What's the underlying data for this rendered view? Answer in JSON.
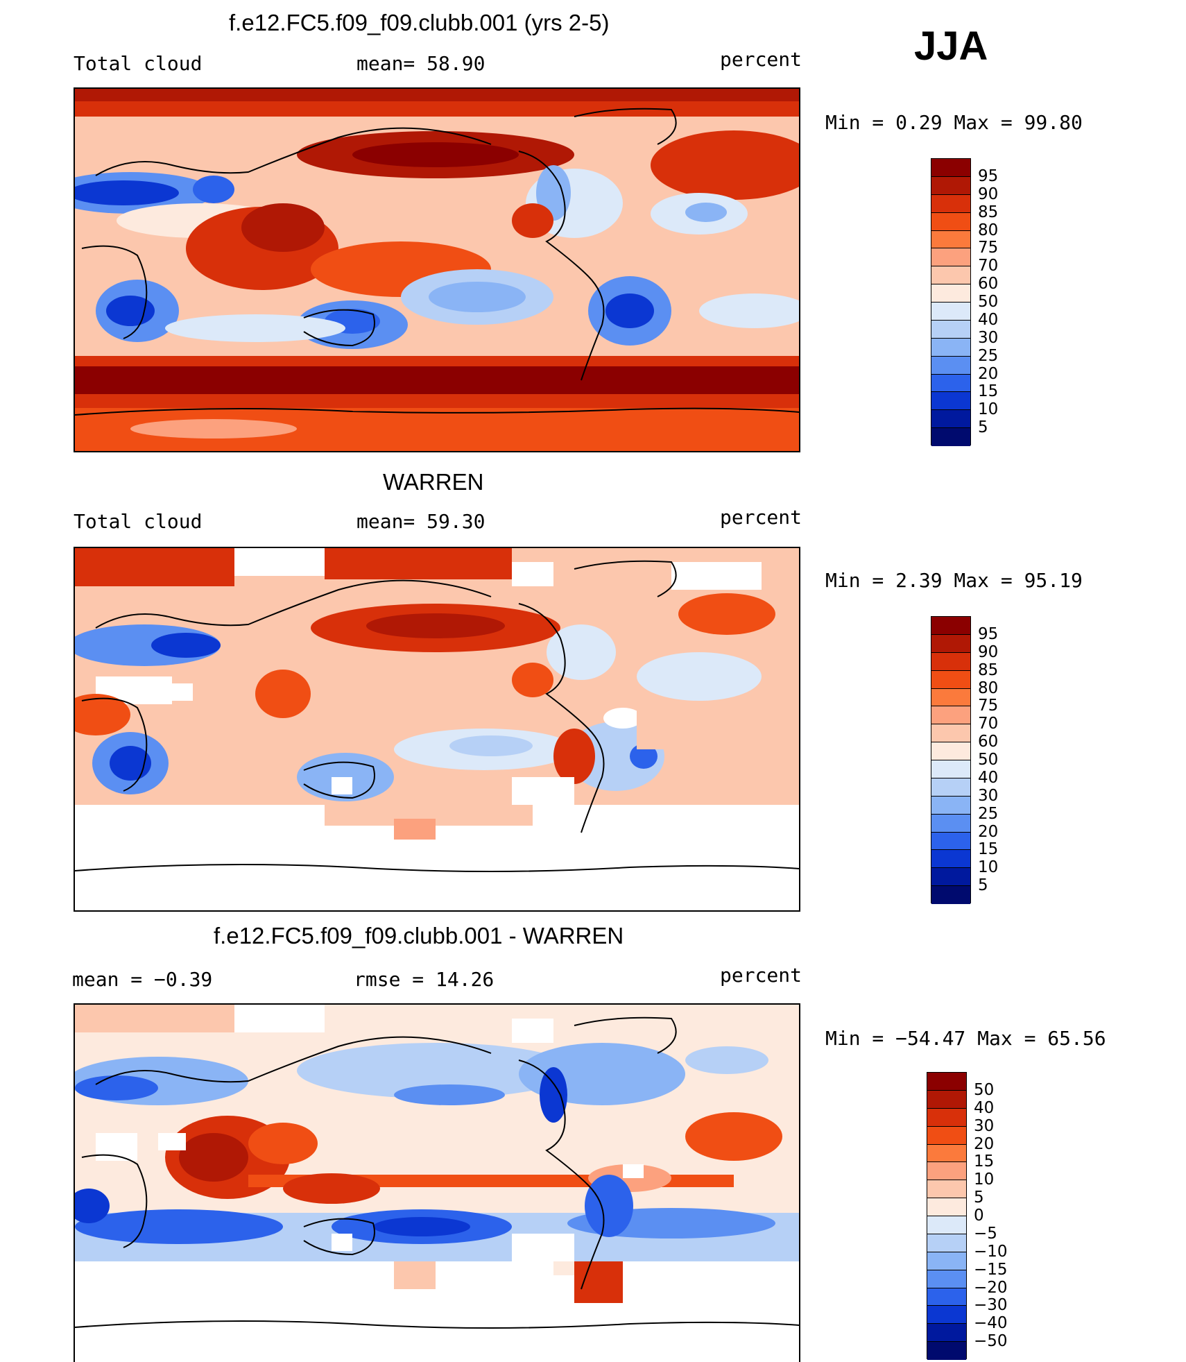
{
  "season": "JJA",
  "panels": [
    {
      "title": "f.e12.FC5.f09_f09.clubb.001 (yrs 2-5)",
      "left_label": "Total cloud",
      "mid_label": "mean=   58.90",
      "units": "percent",
      "minmax": "Min =     0.29  Max =    99.80",
      "colorbar_levels": [
        "95",
        "90",
        "85",
        "80",
        "75",
        "70",
        "60",
        "50",
        "40",
        "30",
        "25",
        "20",
        "15",
        "10",
        "5"
      ]
    },
    {
      "title": "WARREN",
      "left_label": "Total cloud",
      "mid_label": "mean=   59.30",
      "units": "percent",
      "minmax": "Min =     2.39  Max =    95.19",
      "colorbar_levels": [
        "95",
        "90",
        "85",
        "80",
        "75",
        "70",
        "60",
        "50",
        "40",
        "30",
        "25",
        "20",
        "15",
        "10",
        "5"
      ]
    },
    {
      "title": "f.e12.FC5.f09_f09.clubb.001 - WARREN",
      "left_label": "mean =   −0.39",
      "mid_label": "rmse =    14.26",
      "units": "percent",
      "minmax": "Min = −54.47  Max =    65.56",
      "colorbar_levels": [
        "50",
        "40",
        "30",
        "20",
        "15",
        "10",
        "5",
        "0",
        "−5",
        "−10",
        "−15",
        "−20",
        "−30",
        "−40",
        "−50"
      ]
    }
  ],
  "colors": {
    "abs_scale": [
      "#8b0000",
      "#b01805",
      "#d8300a",
      "#f04e14",
      "#fb7a3c",
      "#fca17e",
      "#fcc7ad",
      "#fdeade",
      "#dce9f9",
      "#b6d0f6",
      "#8ab4f5",
      "#5b8ff2",
      "#2c62eb",
      "#0b37d2",
      "#00199e",
      "#000a6e"
    ],
    "diff_scale": [
      "#8b0000",
      "#b01805",
      "#d8300a",
      "#f04e14",
      "#fb7a3c",
      "#fca17e",
      "#fcc7ad",
      "#fdeade",
      "#dce9f9",
      "#b6d0f6",
      "#8ab4f5",
      "#5b8ff2",
      "#2c62eb",
      "#0b37d2",
      "#00199e",
      "#000a6e"
    ]
  },
  "chart_data": [
    {
      "type": "heatmap",
      "title": "f.e12.FC5.f09_f09.clubb.001 (yrs 2-5)",
      "variable": "Total cloud",
      "units": "percent",
      "mean": 58.9,
      "min": 0.29,
      "max": 99.8,
      "contour_levels": [
        5,
        10,
        15,
        20,
        25,
        30,
        40,
        50,
        60,
        70,
        75,
        80,
        85,
        90,
        95
      ]
    },
    {
      "type": "heatmap",
      "title": "WARREN",
      "variable": "Total cloud",
      "units": "percent",
      "mean": 59.3,
      "min": 2.39,
      "max": 95.19,
      "contour_levels": [
        5,
        10,
        15,
        20,
        25,
        30,
        40,
        50,
        60,
        70,
        75,
        80,
        85,
        90,
        95
      ]
    },
    {
      "type": "heatmap",
      "title": "f.e12.FC5.f09_f09.clubb.001 - WARREN",
      "units": "percent",
      "mean": -0.39,
      "rmse": 14.26,
      "min": -54.47,
      "max": 65.56,
      "contour_levels": [
        -50,
        -40,
        -30,
        -20,
        -15,
        -10,
        -5,
        0,
        5,
        10,
        15,
        20,
        30,
        40,
        50
      ]
    }
  ]
}
